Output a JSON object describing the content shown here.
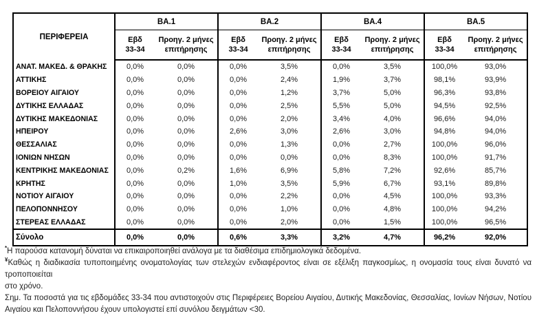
{
  "table": {
    "region_header": "ΠΕΡΙΦΕΡΕΙΑ",
    "groups": [
      {
        "label": "BA.1"
      },
      {
        "label": "BA.2"
      },
      {
        "label": "BA.4"
      },
      {
        "label": "BA.5"
      }
    ],
    "subheaders": {
      "week": "Εβδ\n33-34",
      "prev": "Προηγ. 2 μήνες\nεπιτήρησης"
    },
    "rows": [
      {
        "region": "ΑΝΑΤ. ΜΑΚΕΔ. & ΘΡΑΚΗΣ",
        "values": [
          "0,0%",
          "0,0%",
          "0,0%",
          "3,5%",
          "0,0%",
          "3,5%",
          "100,0%",
          "93,0%"
        ]
      },
      {
        "region": "ΑΤΤΙΚΗΣ",
        "values": [
          "0,0%",
          "0,0%",
          "0,0%",
          "2,4%",
          "1,9%",
          "3,7%",
          "98,1%",
          "93,9%"
        ]
      },
      {
        "region": "ΒΟΡΕΙΟΥ ΑΙΓΑΙΟΥ",
        "values": [
          "0,0%",
          "0,0%",
          "0,0%",
          "1,2%",
          "3,7%",
          "5,0%",
          "96,3%",
          "93,8%"
        ]
      },
      {
        "region": "ΔΥΤΙΚΗΣ ΕΛΛΑΔΑΣ",
        "values": [
          "0,0%",
          "0,0%",
          "0,0%",
          "2,5%",
          "5,5%",
          "5,0%",
          "94,5%",
          "92,5%"
        ]
      },
      {
        "region": "ΔΥΤΙΚΗΣ ΜΑΚΕΔΟΝΙΑΣ",
        "values": [
          "0,0%",
          "0,0%",
          "0,0%",
          "2,0%",
          "3,4%",
          "4,0%",
          "96,6%",
          "94,0%"
        ]
      },
      {
        "region": "ΗΠΕΙΡΟΥ",
        "values": [
          "0,0%",
          "0,0%",
          "2,6%",
          "3,0%",
          "2,6%",
          "3,0%",
          "94,8%",
          "94,0%"
        ]
      },
      {
        "region": "ΘΕΣΣΑΛΙΑΣ",
        "values": [
          "0,0%",
          "0,0%",
          "0,0%",
          "1,3%",
          "0,0%",
          "2,7%",
          "100,0%",
          "96,0%"
        ]
      },
      {
        "region": "ΙΟΝΙΩΝ ΝΗΣΩΝ",
        "values": [
          "0,0%",
          "0,0%",
          "0,0%",
          "0,0%",
          "0,0%",
          "8,3%",
          "100,0%",
          "91,7%"
        ]
      },
      {
        "region": "ΚΕΝΤΡΙΚΗΣ ΜΑΚΕΔΟΝΙΑΣ",
        "values": [
          "0,0%",
          "0,2%",
          "1,6%",
          "6,9%",
          "5,8%",
          "7,2%",
          "92,6%",
          "85,7%"
        ]
      },
      {
        "region": "ΚΡΗΤΗΣ",
        "values": [
          "0,0%",
          "0,0%",
          "1,0%",
          "3,5%",
          "5,9%",
          "6,7%",
          "93,1%",
          "89,8%"
        ]
      },
      {
        "region": "ΝΟΤΙΟΥ ΑΙΓΑΙΟΥ",
        "values": [
          "0,0%",
          "0,0%",
          "0,0%",
          "2,2%",
          "0,0%",
          "4,5%",
          "100,0%",
          "93,3%"
        ]
      },
      {
        "region": "ΠΕΛΟΠΟΝΝΗΣΟΥ",
        "values": [
          "0,0%",
          "0,0%",
          "0,0%",
          "1,0%",
          "0,0%",
          "4,8%",
          "100,0%",
          "94,2%"
        ]
      },
      {
        "region": "ΣΤΕΡΕΑΣ ΕΛΛΑΔΑΣ",
        "values": [
          "0,0%",
          "0,0%",
          "0,0%",
          "2,0%",
          "0,0%",
          "1,5%",
          "100,0%",
          "96,5%"
        ]
      }
    ],
    "total": {
      "region": "Σύνολο",
      "values": [
        "0,0%",
        "0,0%",
        "0,6%",
        "3,3%",
        "3,2%",
        "4,7%",
        "96,2%",
        "92,0%"
      ]
    }
  },
  "footnotes": [
    {
      "marker": "*",
      "text": "Η παρούσα κατανομή δύναται να επικαιροποιηθεί ανάλογα με τα διαθέσιμα επιδημιολογικά δεδομένα."
    },
    {
      "marker": "¥",
      "text": "Καθώς η διαδικασία τυποποιημένης ονοματολογίας των στελεχών ενδιαφέροντος είναι σε εξέλιξη παγκοσμίως, η ονομασία τους είναι δυνατό να τροποποιείται\nστο χρόνο."
    },
    {
      "marker": "",
      "text": "Σημ. Τα ποσοστά για τις εβδομάδες 33-34 που αντιστοιχούν στις Περιφέρειες Βορείου Αιγαίου, Δυτικής Μακεδονίας, Θεσσαλίας, Ιονίων Νήσων, Νοτίου Αιγαίου και Πελοποννήσου έχουν υπολογιστεί επί συνόλου δειγμάτων <30."
    }
  ]
}
